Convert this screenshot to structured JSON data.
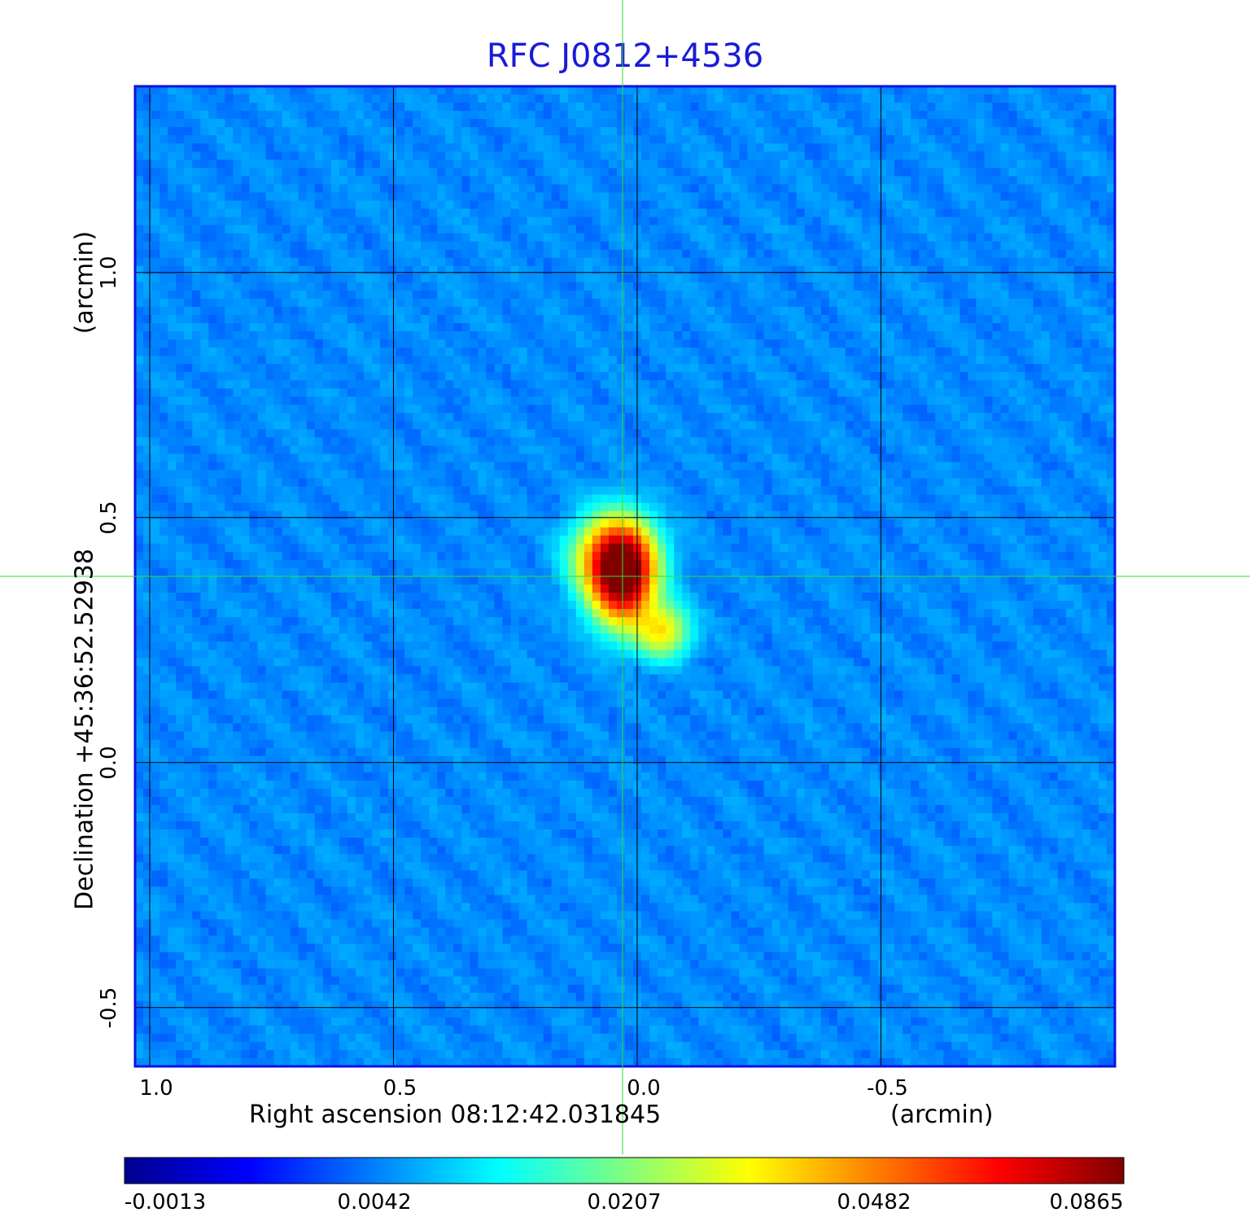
{
  "title": "RFC J0812+4536",
  "colors": {
    "title": "#1a1ad6",
    "frame": "#1010e0",
    "grid": "#000000",
    "crosshair": "#33dd33"
  },
  "chart_data": {
    "type": "heatmap",
    "title": "RFC J0812+4536",
    "colormap": "jet",
    "xlabel": "Right ascension  08:12:42.031845",
    "xunit": "(arcmin)",
    "ylabel": "Declination  +45:36:52.52938",
    "yunit": "(arcmin)",
    "x_ticks": [
      "1.0",
      "0.5",
      "0.0",
      "-0.5"
    ],
    "x_tick_values": [
      1.0,
      0.5,
      0.0,
      -0.5
    ],
    "y_ticks": [
      "1.0",
      "0.5",
      "0.0",
      "-0.5"
    ],
    "y_tick_values": [
      1.0,
      0.5,
      0.0,
      -0.5
    ],
    "xlim": [
      1.03,
      -0.98
    ],
    "ylim": [
      -0.62,
      1.38
    ],
    "grid": true,
    "crosshair": {
      "x": 0.03,
      "y": 0.38
    },
    "colorbar_ticks": [
      "-0.0013",
      "0.0042",
      "0.0207",
      "0.0482",
      "0.0865"
    ],
    "colorbar_range": [
      -0.0013,
      0.0865
    ],
    "peak": {
      "x": 0.02,
      "y": 0.37,
      "value": 0.0865
    },
    "features": [
      {
        "x": 0.03,
        "y": 0.38,
        "sx": 0.04,
        "sy": 0.06,
        "amp": 0.0865
      },
      {
        "x": 0.05,
        "y": 0.42,
        "sx": 0.05,
        "sy": 0.05,
        "amp": 0.04
      },
      {
        "x": -0.05,
        "y": 0.27,
        "sx": 0.035,
        "sy": 0.035,
        "amp": 0.028
      }
    ]
  }
}
